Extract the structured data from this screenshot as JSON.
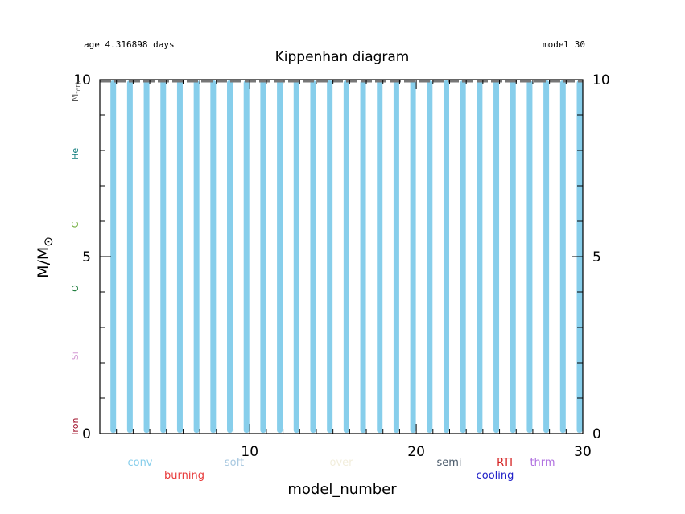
{
  "header": {
    "age_text": "age 4.316898 days",
    "model_text": "model 30"
  },
  "chart_data": {
    "type": "bar",
    "title": "Kippenhan diagram",
    "xlabel": "model_number",
    "ylabel_main": "M/M",
    "ylabel_sub": "⊙",
    "xlim": [
      1,
      30
    ],
    "ylim": [
      0,
      10
    ],
    "x_ticks": [
      10,
      20,
      30
    ],
    "y_ticks": [
      0,
      5,
      10
    ],
    "grid": false,
    "series": [
      {
        "name": "conv",
        "color": "#87ceeb",
        "x": [
          2,
          3,
          4,
          5,
          6,
          7,
          8,
          9,
          10,
          11,
          12,
          13,
          14,
          15,
          16,
          17,
          18,
          19,
          20,
          21,
          22,
          23,
          24,
          25,
          26,
          27,
          28,
          29,
          30
        ],
        "y_bottom": [
          0,
          0,
          0,
          0,
          0,
          0,
          0,
          0,
          0,
          0,
          0,
          0,
          0,
          0,
          0,
          0,
          0,
          0,
          0,
          0,
          0,
          0,
          0,
          0,
          0,
          0,
          0,
          0,
          0
        ],
        "y_top": [
          10,
          10,
          10,
          10,
          10,
          10,
          10,
          10,
          10,
          10,
          10,
          10,
          10,
          10,
          10,
          10,
          10,
          10,
          10,
          10,
          10,
          10,
          10,
          10,
          10,
          10,
          10,
          10,
          10
        ]
      }
    ],
    "total_mass_line": {
      "value": 10,
      "color": "#777777"
    },
    "left_labels": [
      {
        "text": "M",
        "sub": "total",
        "color": "#555555",
        "y": 9.7
      },
      {
        "text": "He",
        "color": "#0b7a7a",
        "y": 7.9
      },
      {
        "text": "C",
        "color": "#76b043",
        "y": 5.9
      },
      {
        "text": "O",
        "color": "#1a7a3a",
        "y": 4.1
      },
      {
        "text": "Si",
        "color": "#d49bd4",
        "y": 2.2
      },
      {
        "text": "Iron",
        "color": "#a0102a",
        "y": 0.2
      }
    ],
    "legend": [
      {
        "text": "conv",
        "color": "#87ceeb",
        "row": 0,
        "pos": 0
      },
      {
        "text": "burning",
        "color": "#e83a3a",
        "row": 1,
        "pos": 1
      },
      {
        "text": "soft",
        "color": "#a8c8e0",
        "row": 0,
        "pos": 2
      },
      {
        "text": "over",
        "color": "#f2eedc",
        "row": 0,
        "pos": 3
      },
      {
        "text": "semi",
        "color": "#4a5a6a",
        "row": 0,
        "pos": 4
      },
      {
        "text": "RTI",
        "color": "#d42020",
        "row": 0,
        "pos": 5
      },
      {
        "text": "cooling",
        "color": "#2020c8",
        "row": 1,
        "pos": 6
      },
      {
        "text": "thrm",
        "color": "#b070e0",
        "row": 0,
        "pos": 7
      }
    ]
  }
}
